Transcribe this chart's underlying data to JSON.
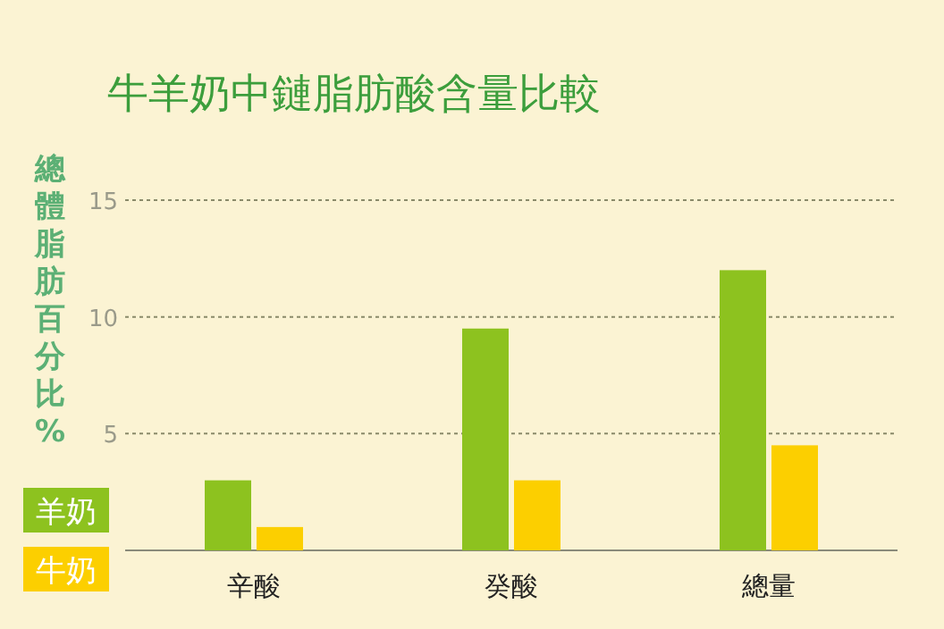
{
  "chart_data": {
    "type": "bar",
    "title": "牛羊奶中鏈脂肪酸含量比較",
    "ylabel": "總體脂肪百分比%",
    "categories": [
      "辛酸",
      "癸酸",
      "總量"
    ],
    "series": [
      {
        "name": "羊奶",
        "color": "#8dc21f",
        "values": [
          3.0,
          9.5,
          12.0
        ]
      },
      {
        "name": "牛奶",
        "color": "#fccf00",
        "values": [
          1.0,
          3.0,
          4.5
        ]
      }
    ],
    "ylim": [
      0,
      15
    ],
    "yticks": [
      5,
      10,
      15
    ],
    "grid": "y",
    "legend": "bottom left"
  }
}
